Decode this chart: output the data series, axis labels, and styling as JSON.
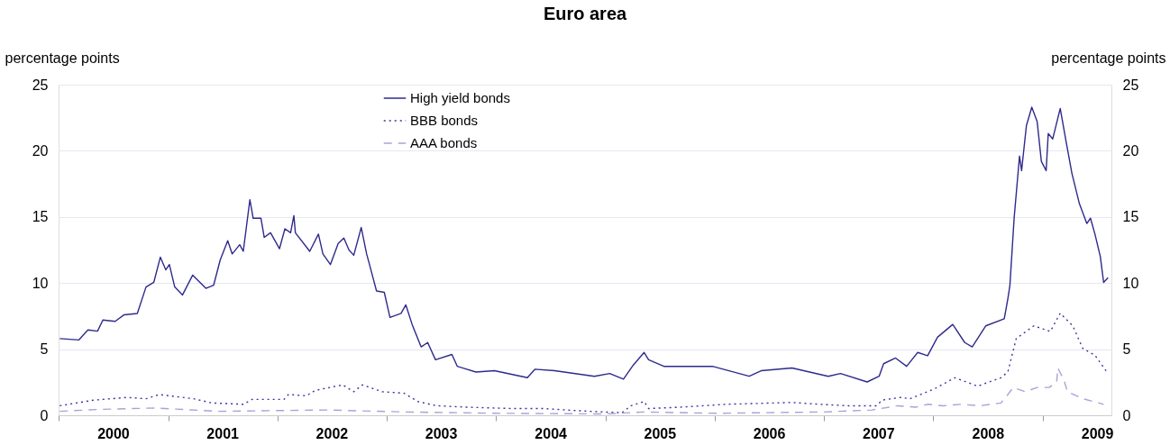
{
  "chart_data": {
    "type": "line",
    "title": "Euro area",
    "ylabel": "percentage points",
    "y2label": "percentage points",
    "xlim": [
      "2000-01-01",
      "2009-08-18"
    ],
    "xticks": [
      {
        "value": "2000-01-01",
        "label": null
      },
      {
        "value": "2000-07-01",
        "label": "2000"
      },
      {
        "value": "2001-01-01",
        "label": null
      },
      {
        "value": "2001-07-01",
        "label": "2001"
      },
      {
        "value": "2002-01-01",
        "label": null
      },
      {
        "value": "2002-07-01",
        "label": "2002"
      },
      {
        "value": "2003-01-01",
        "label": null
      },
      {
        "value": "2003-07-01",
        "label": "2003"
      },
      {
        "value": "2004-01-01",
        "label": null
      },
      {
        "value": "2004-07-01",
        "label": "2004"
      },
      {
        "value": "2005-01-01",
        "label": null
      },
      {
        "value": "2005-07-01",
        "label": "2005"
      },
      {
        "value": "2006-01-01",
        "label": null
      },
      {
        "value": "2006-07-01",
        "label": "2006"
      },
      {
        "value": "2007-01-01",
        "label": null
      },
      {
        "value": "2007-07-01",
        "label": "2007"
      },
      {
        "value": "2008-01-01",
        "label": null
      },
      {
        "value": "2008-07-01",
        "label": "2008"
      },
      {
        "value": "2009-01-01",
        "label": null
      },
      {
        "value": "2009-07-01",
        "label": "2009"
      }
    ],
    "ylim": [
      0,
      25
    ],
    "yticks": [
      0,
      5,
      10,
      15,
      20,
      25
    ],
    "y2lim": [
      0,
      25
    ],
    "y2ticks": [
      0,
      5,
      10,
      15,
      20,
      25
    ],
    "grid": "y",
    "legend": "top",
    "marker": "none",
    "series": [
      {
        "name": "High yield bonds",
        "color": "#2e2a8c",
        "line_style": "solid",
        "x": [
          "2000-01-05",
          "2000-03-09",
          "2000-04-08",
          "2000-05-10",
          "2000-05-28",
          "2000-07-08",
          "2000-08-07",
          "2000-09-20",
          "2000-10-19",
          "2000-11-14",
          "2000-12-06",
          "2000-12-24",
          "2001-01-05",
          "2001-01-23",
          "2001-02-18",
          "2001-03-24",
          "2001-05-07",
          "2001-06-02",
          "2001-06-24",
          "2001-07-19",
          "2001-08-03",
          "2001-08-28",
          "2001-09-09",
          "2001-10-01",
          "2001-10-12",
          "2001-11-07",
          "2001-11-18",
          "2001-12-09",
          "2002-01-08",
          "2002-01-26",
          "2002-02-14",
          "2002-02-25",
          "2002-03-02",
          "2002-04-19",
          "2002-05-18",
          "2002-06-02",
          "2002-06-27",
          "2002-07-23",
          "2002-08-11",
          "2002-08-28",
          "2002-09-13",
          "2002-10-08",
          "2002-10-26",
          "2002-11-07",
          "2002-11-28",
          "2002-12-24",
          "2003-01-12",
          "2003-02-18",
          "2003-03-06",
          "2003-03-27",
          "2003-04-26",
          "2003-05-18",
          "2003-06-13",
          "2003-08-07",
          "2003-08-25",
          "2003-10-26",
          "2003-12-27",
          "2004-04-15",
          "2004-05-10",
          "2004-07-15",
          "2004-11-25",
          "2005-01-15",
          "2005-03-02",
          "2005-04-04",
          "2005-05-10",
          "2005-05-25",
          "2005-07-15",
          "2005-12-24",
          "2006-04-26",
          "2006-06-05",
          "2006-09-16",
          "2007-01-15",
          "2007-02-25",
          "2007-05-25",
          "2007-07-04",
          "2007-07-19",
          "2007-08-28",
          "2007-10-04",
          "2007-11-10",
          "2007-12-13",
          "2008-01-15",
          "2008-03-06",
          "2008-04-15",
          "2008-05-10",
          "2008-06-24",
          "2008-08-25",
          "2008-09-06",
          "2008-09-13",
          "2008-09-27",
          "2008-10-15",
          "2008-10-22",
          "2008-11-07",
          "2008-11-25",
          "2008-12-13",
          "2008-12-27",
          "2009-01-12",
          "2009-01-19",
          "2009-02-03",
          "2009-02-28",
          "2009-03-20",
          "2009-04-08",
          "2009-05-03",
          "2009-05-28",
          "2009-06-09",
          "2009-06-24",
          "2009-07-12",
          "2009-07-23",
          "2009-08-07"
        ],
        "values": [
          5.8,
          5.7,
          6.45,
          6.36,
          7.2,
          7.1,
          7.6,
          7.7,
          9.7,
          10.05,
          11.96,
          11.0,
          11.4,
          9.7,
          9.1,
          10.6,
          9.6,
          9.84,
          11.75,
          13.2,
          12.2,
          12.9,
          12.4,
          16.3,
          14.9,
          14.9,
          13.45,
          13.8,
          12.6,
          14.1,
          13.8,
          15.1,
          13.8,
          12.4,
          13.7,
          12.2,
          11.4,
          13.0,
          13.4,
          12.5,
          12.1,
          14.2,
          12.2,
          11.2,
          9.4,
          9.3,
          7.4,
          7.7,
          8.35,
          6.87,
          5.17,
          5.5,
          4.2,
          4.6,
          3.7,
          3.27,
          3.37,
          2.84,
          3.48,
          3.37,
          2.95,
          3.16,
          2.73,
          3.8,
          4.75,
          4.2,
          3.7,
          3.7,
          2.95,
          3.37,
          3.58,
          2.95,
          3.16,
          2.52,
          2.95,
          3.9,
          4.33,
          3.7,
          4.75,
          4.5,
          5.9,
          6.87,
          5.5,
          5.17,
          6.76,
          7.3,
          8.8,
          9.84,
          14.9,
          19.6,
          18.5,
          21.9,
          23.3,
          22.2,
          19.2,
          18.5,
          21.3,
          20.9,
          23.2,
          20.65,
          18.3,
          16.0,
          14.5,
          14.9,
          13.7,
          12.0,
          10.05,
          10.4
        ]
      },
      {
        "name": "BBB bonds",
        "color": "#3a34a0",
        "line_style": "dotted",
        "x": [
          "2000-01-05",
          "2000-04-29",
          "2000-08-18",
          "2000-10-19",
          "2000-12-02",
          "2001-03-27",
          "2001-05-28",
          "2001-09-09",
          "2001-10-08",
          "2002-01-23",
          "2002-02-07",
          "2002-04-08",
          "2002-05-07",
          "2002-08-07",
          "2002-09-13",
          "2002-10-12",
          "2002-12-17",
          "2003-02-28",
          "2003-04-15",
          "2003-06-17",
          "2003-09-27",
          "2004-02-25",
          "2004-06-05",
          "2004-11-07",
          "2005-02-25",
          "2005-03-27",
          "2005-05-10",
          "2005-05-25",
          "2005-09-06",
          "2006-02-07",
          "2006-07-15",
          "2006-09-16",
          "2006-12-17",
          "2007-03-24",
          "2007-06-24",
          "2007-07-15",
          "2007-09-13",
          "2007-10-15",
          "2008-01-05",
          "2008-03-13",
          "2008-05-28",
          "2008-08-14",
          "2008-09-06",
          "2008-10-04",
          "2008-12-02",
          "2009-01-26",
          "2009-02-28",
          "2009-04-11",
          "2009-05-14",
          "2009-06-24",
          "2009-08-03"
        ],
        "values": [
          0.72,
          1.15,
          1.35,
          1.25,
          1.57,
          1.25,
          0.93,
          0.83,
          1.2,
          1.2,
          1.57,
          1.47,
          1.88,
          2.3,
          1.78,
          2.3,
          1.78,
          1.67,
          1.04,
          0.72,
          0.61,
          0.51,
          0.51,
          0.3,
          0.19,
          0.72,
          1.04,
          0.51,
          0.61,
          0.83,
          0.93,
          0.97,
          0.83,
          0.72,
          0.72,
          1.15,
          1.35,
          1.25,
          2.0,
          2.84,
          2.2,
          2.84,
          3.27,
          5.8,
          6.76,
          6.34,
          7.72,
          6.76,
          5.07,
          4.54,
          3.27
        ]
      },
      {
        "name": "AAA bonds",
        "color": "#a9a3d6",
        "line_style": "dashed",
        "x": [
          "2000-01-05",
          "2000-05-20",
          "2000-11-20",
          "2001-06-15",
          "2002-06-15",
          "2003-03-10",
          "2004-01-01",
          "2005-01-01",
          "2005-05-10",
          "2006-01-01",
          "2007-01-01",
          "2007-06-10",
          "2007-09-05",
          "2007-11-03",
          "2007-12-13",
          "2008-02-02",
          "2008-04-04",
          "2008-06-03",
          "2008-08-14",
          "2008-09-06",
          "2008-09-24",
          "2008-11-03",
          "2008-12-13",
          "2009-01-22",
          "2009-02-16",
          "2009-02-20",
          "2009-03-13",
          "2009-03-24",
          "2009-05-15",
          "2009-07-23"
        ],
        "values": [
          0.3,
          0.45,
          0.55,
          0.3,
          0.4,
          0.25,
          0.15,
          0.1,
          0.25,
          0.15,
          0.25,
          0.4,
          0.72,
          0.61,
          0.83,
          0.72,
          0.83,
          0.72,
          0.93,
          1.57,
          2.1,
          1.78,
          2.1,
          2.1,
          2.52,
          3.58,
          2.63,
          1.78,
          1.25,
          0.83
        ]
      }
    ]
  }
}
